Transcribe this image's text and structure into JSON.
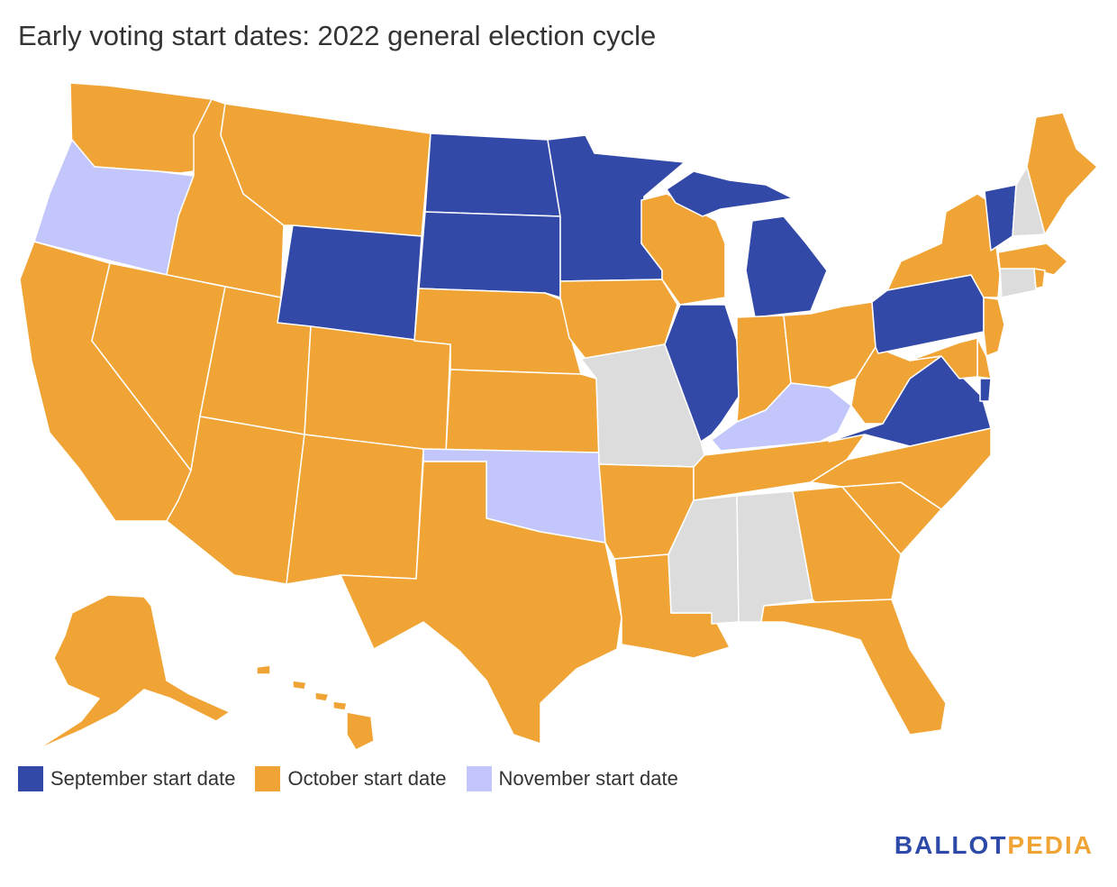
{
  "title": "Early voting start dates: 2022 general election cycle",
  "colors": {
    "september": "#3349a8",
    "october": "#f0a435",
    "november": "#c2c6fb",
    "none": "#dcdcdc"
  },
  "legend": [
    {
      "key": "september",
      "label": "September start date"
    },
    {
      "key": "october",
      "label": "October start date"
    },
    {
      "key": "november",
      "label": "November start date"
    }
  ],
  "states": {
    "WA": "october",
    "OR": "november",
    "CA": "october",
    "ID": "october",
    "NV": "october",
    "MT": "october",
    "WY": "september",
    "UT": "october",
    "AZ": "october",
    "CO": "october",
    "NM": "october",
    "ND": "september",
    "SD": "september",
    "NE": "october",
    "KS": "october",
    "OK": "november",
    "TX": "october",
    "MN": "september",
    "IA": "october",
    "MO": "none",
    "AR": "october",
    "LA": "october",
    "WI": "october",
    "IL": "september",
    "MI": "september",
    "IN": "october",
    "OH": "october",
    "KY": "november",
    "TN": "october",
    "MS": "none",
    "AL": "none",
    "GA": "october",
    "FL": "october",
    "SC": "october",
    "NC": "october",
    "VA": "september",
    "WV": "october",
    "PA": "september",
    "NY": "october",
    "VT": "september",
    "NH": "none",
    "ME": "october",
    "MA": "october",
    "CT": "none",
    "RI": "october",
    "NJ": "october",
    "DE": "october",
    "MD": "october",
    "DC": "september",
    "AK": "october",
    "HI": "october"
  },
  "logo": {
    "part1": "BALLOT",
    "part2": "PEDIA"
  }
}
